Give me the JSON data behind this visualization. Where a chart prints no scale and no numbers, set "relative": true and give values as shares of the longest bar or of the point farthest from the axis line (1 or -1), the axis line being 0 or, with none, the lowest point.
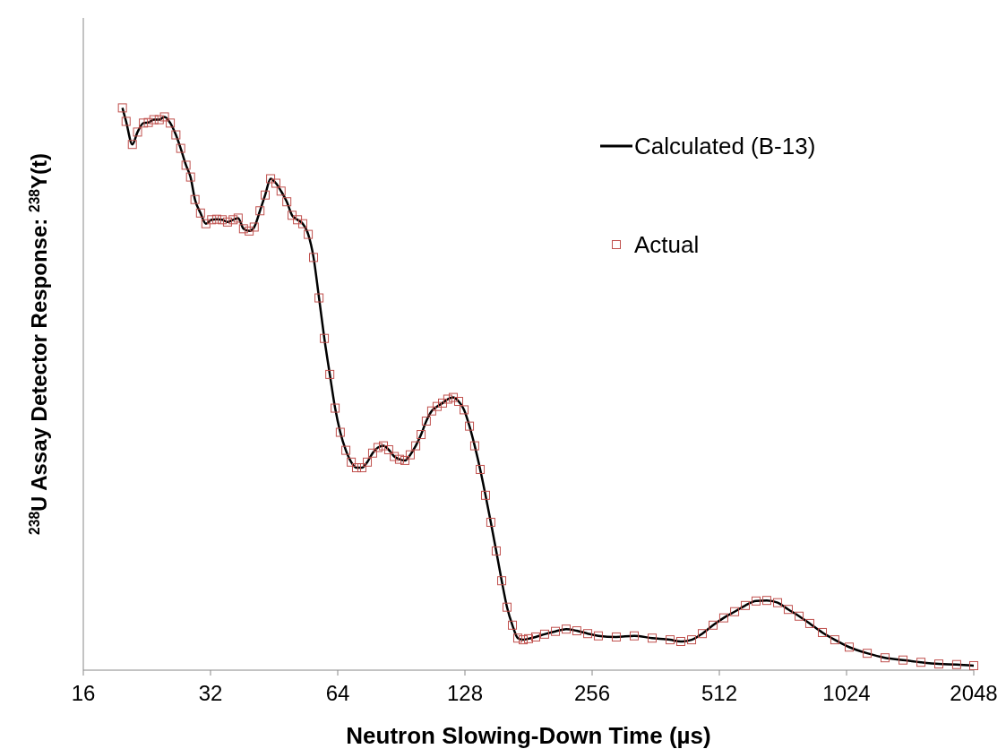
{
  "chart_data": {
    "type": "line",
    "xlabel": "Neutron Slowing-Down Time (µs)",
    "ylabel": "$^{238}$U Assay Detector Response: $^{238}$Y(t)",
    "relative": true,
    "log": "x",
    "xlim": [
      16,
      2048
    ],
    "xticks": [
      16,
      32,
      64,
      128,
      256,
      512,
      1024,
      2048
    ],
    "legend": "top right",
    "series": [
      {
        "name": "Calculated (B-13)",
        "color": "#000000",
        "marker": "none",
        "x": [
          19.8,
          20.2,
          20.9,
          21.5,
          22.2,
          22.8,
          23.5,
          24.2,
          24.9,
          25.7,
          26.5,
          27.2,
          28.0,
          28.7,
          29.4,
          30.3,
          31.2,
          32.2,
          33.1,
          34.1,
          35.1,
          36.2,
          37.2,
          38.3,
          39.5,
          40.6,
          41.9,
          43.1,
          44.4,
          45.7,
          47.0,
          48.5,
          49.9,
          51.4,
          52.9,
          54.5,
          56.1,
          57.8,
          59.5,
          61.3,
          63.1,
          64.9,
          66.9,
          68.9,
          70.9,
          73.0,
          75.2,
          77.4,
          79.7,
          82.1,
          84.5,
          87.1,
          89.6,
          92.3,
          95.0,
          97.9,
          100.8,
          103.7,
          106.8,
          110.0,
          113.3,
          116.6,
          120.1,
          123.7,
          127.4,
          131.2,
          135.0,
          139.1,
          143.2,
          147.4,
          151.8,
          156.4,
          161.0,
          165.8,
          170.7,
          175.8,
          181.0,
          188.2,
          197.6,
          209.6,
          222.2,
          235.5,
          249.9,
          264.8,
          292.0,
          322.0,
          355.0,
          391.5,
          415.0,
          440.2,
          466.6,
          494.9,
          524.5,
          556.5,
          589.8,
          625.4,
          663.0,
          703.3,
          745.4,
          790.7,
          838.1,
          897.6,
          960.8,
          1039,
          1146,
          1263,
          1393,
          1536,
          1693,
          1866,
          2048
        ],
        "values": [
          1.0,
          0.976,
          0.935,
          0.957,
          0.973,
          0.974,
          0.979,
          0.979,
          0.984,
          0.973,
          0.952,
          0.928,
          0.898,
          0.877,
          0.837,
          0.813,
          0.794,
          0.801,
          0.802,
          0.801,
          0.797,
          0.801,
          0.804,
          0.785,
          0.781,
          0.788,
          0.817,
          0.845,
          0.874,
          0.866,
          0.852,
          0.833,
          0.809,
          0.801,
          0.794,
          0.775,
          0.734,
          0.662,
          0.59,
          0.526,
          0.466,
          0.423,
          0.391,
          0.37,
          0.36,
          0.36,
          0.37,
          0.386,
          0.396,
          0.399,
          0.392,
          0.38,
          0.375,
          0.373,
          0.383,
          0.399,
          0.419,
          0.443,
          0.461,
          0.469,
          0.475,
          0.482,
          0.485,
          0.478,
          0.463,
          0.434,
          0.399,
          0.357,
          0.311,
          0.263,
          0.212,
          0.159,
          0.112,
          0.08,
          0.057,
          0.054,
          0.056,
          0.059,
          0.064,
          0.069,
          0.073,
          0.07,
          0.065,
          0.061,
          0.059,
          0.061,
          0.057,
          0.054,
          0.051,
          0.054,
          0.065,
          0.08,
          0.093,
          0.104,
          0.115,
          0.123,
          0.124,
          0.12,
          0.108,
          0.096,
          0.083,
          0.067,
          0.054,
          0.041,
          0.03,
          0.022,
          0.018,
          0.014,
          0.011,
          0.01,
          0.008
        ]
      },
      {
        "name": "Actual",
        "type": "scatter",
        "color": "#c0504d",
        "marker": "square",
        "x": [
          19.8,
          20.2,
          20.9,
          21.5,
          22.2,
          22.8,
          23.5,
          24.2,
          24.9,
          25.7,
          26.5,
          27.2,
          28.0,
          28.7,
          29.4,
          30.3,
          31.2,
          32.2,
          33.1,
          34.1,
          35.1,
          36.2,
          37.2,
          38.3,
          39.5,
          40.6,
          41.9,
          43.1,
          44.4,
          45.7,
          47.0,
          48.5,
          49.9,
          51.4,
          52.9,
          54.5,
          56.1,
          57.8,
          59.5,
          61.3,
          63.1,
          64.9,
          66.9,
          68.9,
          70.9,
          73.0,
          75.2,
          77.4,
          79.7,
          82.1,
          84.5,
          87.1,
          89.6,
          92.3,
          95.0,
          97.9,
          100.8,
          103.7,
          106.8,
          110.0,
          113.3,
          116.6,
          120.1,
          123.7,
          127.4,
          131.2,
          135.0,
          139.1,
          143.2,
          147.4,
          151.8,
          156.4,
          161.0,
          165.8,
          170.7,
          175.8,
          181.0,
          188.2,
          197.6,
          209.6,
          222.2,
          235.5,
          249.9,
          264.8,
          292.0,
          322.0,
          355.0,
          391.5,
          415.0,
          440.2,
          466.6,
          494.9,
          524.5,
          556.5,
          589.8,
          625.4,
          663.0,
          703.3,
          745.4,
          790.7,
          838.1,
          897.6,
          960.8,
          1039,
          1146,
          1263,
          1393,
          1536,
          1693,
          1866,
          2048
        ],
        "values": [
          1.0,
          0.976,
          0.935,
          0.957,
          0.973,
          0.974,
          0.979,
          0.979,
          0.984,
          0.973,
          0.952,
          0.928,
          0.898,
          0.877,
          0.837,
          0.813,
          0.794,
          0.801,
          0.802,
          0.801,
          0.797,
          0.801,
          0.804,
          0.785,
          0.781,
          0.788,
          0.817,
          0.845,
          0.874,
          0.866,
          0.852,
          0.833,
          0.809,
          0.801,
          0.794,
          0.775,
          0.734,
          0.662,
          0.59,
          0.526,
          0.466,
          0.423,
          0.391,
          0.37,
          0.36,
          0.36,
          0.37,
          0.386,
          0.396,
          0.399,
          0.392,
          0.38,
          0.375,
          0.373,
          0.383,
          0.399,
          0.419,
          0.443,
          0.461,
          0.469,
          0.475,
          0.482,
          0.485,
          0.478,
          0.463,
          0.434,
          0.399,
          0.357,
          0.311,
          0.263,
          0.212,
          0.159,
          0.112,
          0.08,
          0.057,
          0.054,
          0.056,
          0.059,
          0.064,
          0.069,
          0.073,
          0.07,
          0.065,
          0.061,
          0.059,
          0.061,
          0.057,
          0.054,
          0.051,
          0.054,
          0.065,
          0.08,
          0.093,
          0.104,
          0.115,
          0.123,
          0.124,
          0.12,
          0.108,
          0.096,
          0.083,
          0.067,
          0.054,
          0.041,
          0.03,
          0.022,
          0.018,
          0.014,
          0.011,
          0.01,
          0.008
        ]
      }
    ]
  }
}
